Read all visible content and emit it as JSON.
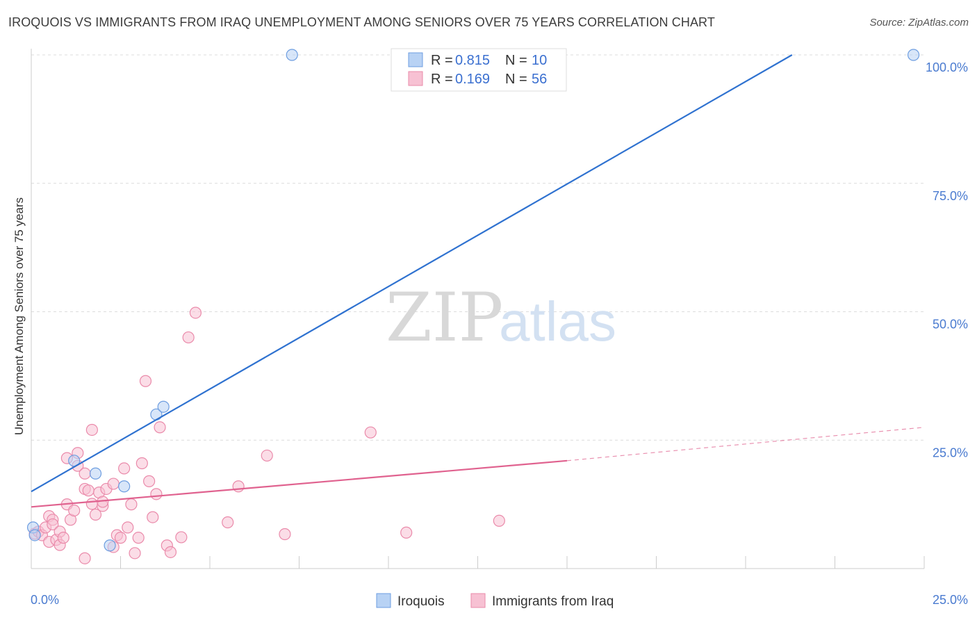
{
  "header": {
    "title": "IROQUOIS VS IMMIGRANTS FROM IRAQ UNEMPLOYMENT AMONG SENIORS OVER 75 YEARS CORRELATION CHART",
    "source": "Source: ZipAtlas.com"
  },
  "watermark": {
    "zip": "ZIP",
    "atlas": "atlas"
  },
  "colors": {
    "iroquois_fill": "#b8d2f4",
    "iroquois_stroke": "#6d9de0",
    "iroquois_line": "#2f72d0",
    "iraq_fill": "#f7c1d3",
    "iraq_stroke": "#ea8aaa",
    "iraq_line": "#e0628f",
    "grid": "#dcdcdc",
    "tick_text": "#4a7bd0"
  },
  "legend": {
    "rows": [
      {
        "r_label": "R = ",
        "r_value": "0.815",
        "n_label": "N = ",
        "n_value": "10"
      },
      {
        "r_label": "R = ",
        "r_value": "0.169",
        "n_label": "N = ",
        "n_value": "56"
      }
    ]
  },
  "chart_data": {
    "type": "scatter",
    "title": "IROQUOIS VS IMMIGRANTS FROM IRAQ UNEMPLOYMENT AMONG SENIORS OVER 75 YEARS CORRELATION CHART",
    "xlabel": "",
    "ylabel": "Unemployment Among Seniors over 75 years",
    "xlim": [
      0,
      25
    ],
    "ylim": [
      0,
      100
    ],
    "x_tick_labels": [
      "0.0%",
      "25.0%"
    ],
    "y_tick_labels": [
      "100.0%",
      "75.0%",
      "50.0%",
      "25.0%"
    ],
    "y_ticks": [
      100,
      75,
      50,
      25
    ],
    "series": [
      {
        "name": "Iroquois",
        "r": 0.815,
        "n": 10,
        "trend": {
          "x": [
            0,
            21.3
          ],
          "y": [
            15.0,
            100.0
          ],
          "dashed_to": null
        },
        "points": [
          [
            0.05,
            8.0
          ],
          [
            0.1,
            6.5
          ],
          [
            1.2,
            21.0
          ],
          [
            1.8,
            18.5
          ],
          [
            2.6,
            16.0
          ],
          [
            3.5,
            30.0
          ],
          [
            3.7,
            31.5
          ],
          [
            7.3,
            100.0
          ],
          [
            24.7,
            100.0
          ],
          [
            2.2,
            4.5
          ]
        ]
      },
      {
        "name": "Immigrants from Iraq",
        "r": 0.169,
        "n": 56,
        "trend": {
          "x": [
            0,
            15.0
          ],
          "y": [
            12.0,
            21.0
          ],
          "dashed_to": [
            25.0,
            27.5
          ]
        },
        "points": [
          [
            0.1,
            6.8
          ],
          [
            0.2,
            7.2
          ],
          [
            0.3,
            6.5
          ],
          [
            0.4,
            8.0
          ],
          [
            0.5,
            10.2
          ],
          [
            0.6,
            9.5
          ],
          [
            0.5,
            5.2
          ],
          [
            0.6,
            8.6
          ],
          [
            0.7,
            5.6
          ],
          [
            0.8,
            7.2
          ],
          [
            1.1,
            9.5
          ],
          [
            1.0,
            12.5
          ],
          [
            1.2,
            11.3
          ],
          [
            1.3,
            20.0
          ],
          [
            1.5,
            15.5
          ],
          [
            1.6,
            15.2
          ],
          [
            1.7,
            12.6
          ],
          [
            1.8,
            10.5
          ],
          [
            1.9,
            14.8
          ],
          [
            2.0,
            12.2
          ],
          [
            2.1,
            15.5
          ],
          [
            2.3,
            4.2
          ],
          [
            2.4,
            6.5
          ],
          [
            2.5,
            6.0
          ],
          [
            2.6,
            19.5
          ],
          [
            2.7,
            8.0
          ],
          [
            2.8,
            12.5
          ],
          [
            2.9,
            3.0
          ],
          [
            3.0,
            6.0
          ],
          [
            3.1,
            20.5
          ],
          [
            3.2,
            36.5
          ],
          [
            3.3,
            17.0
          ],
          [
            3.4,
            10.0
          ],
          [
            3.5,
            14.5
          ],
          [
            3.6,
            27.5
          ],
          [
            3.8,
            4.5
          ],
          [
            3.9,
            3.2
          ],
          [
            4.2,
            6.1
          ],
          [
            4.4,
            45.0
          ],
          [
            4.6,
            49.8
          ],
          [
            5.5,
            9.0
          ],
          [
            5.8,
            16.0
          ],
          [
            6.6,
            22.0
          ],
          [
            7.1,
            6.7
          ],
          [
            9.5,
            26.5
          ],
          [
            10.5,
            7.0
          ],
          [
            13.1,
            9.3
          ],
          [
            1.7,
            27.0
          ],
          [
            1.3,
            22.5
          ],
          [
            1.0,
            21.5
          ],
          [
            0.8,
            4.6
          ],
          [
            1.5,
            18.5
          ],
          [
            2.3,
            16.5
          ],
          [
            2.0,
            13.0
          ],
          [
            0.9,
            6.0
          ],
          [
            1.5,
            2.0
          ]
        ]
      }
    ]
  },
  "bottom_legend": {
    "items": [
      {
        "label": "Iroquois"
      },
      {
        "label": "Immigrants from Iraq"
      }
    ]
  }
}
